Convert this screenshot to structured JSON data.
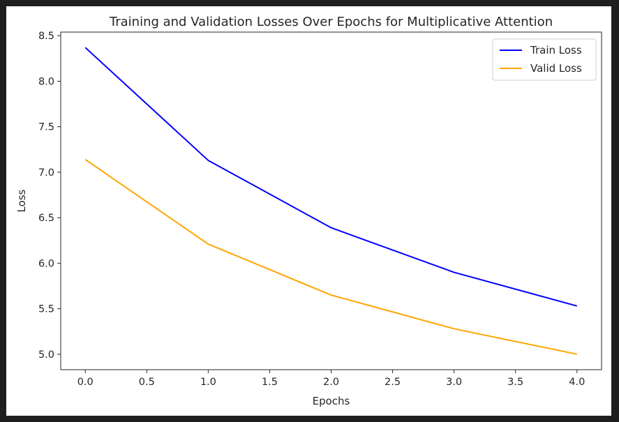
{
  "chart_data": {
    "type": "line",
    "title": "Training and Validation Losses Over Epochs for Multiplicative Attention",
    "xlabel": "Epochs",
    "ylabel": "Loss",
    "x": [
      0,
      1,
      2,
      3,
      4
    ],
    "xlim": [
      -0.2,
      4.2
    ],
    "ylim": [
      4.83,
      8.54
    ],
    "xticks": [
      0.0,
      0.5,
      1.0,
      1.5,
      2.0,
      2.5,
      3.0,
      3.5,
      4.0
    ],
    "xtick_labels": [
      "0.0",
      "0.5",
      "1.0",
      "1.5",
      "2.0",
      "2.5",
      "3.0",
      "3.5",
      "4.0"
    ],
    "yticks": [
      5.0,
      5.5,
      6.0,
      6.5,
      7.0,
      7.5,
      8.0,
      8.5
    ],
    "ytick_labels": [
      "5.0",
      "5.5",
      "6.0",
      "6.5",
      "7.0",
      "7.5",
      "8.0",
      "8.5"
    ],
    "grid": false,
    "legend_position": "top-right",
    "series": [
      {
        "name": "Train Loss",
        "color": "#0000ff",
        "values": [
          8.37,
          7.13,
          6.39,
          5.9,
          5.53
        ]
      },
      {
        "name": "Valid Loss",
        "color": "#ffa500",
        "values": [
          7.14,
          6.21,
          5.65,
          5.28,
          5.0
        ]
      }
    ]
  }
}
